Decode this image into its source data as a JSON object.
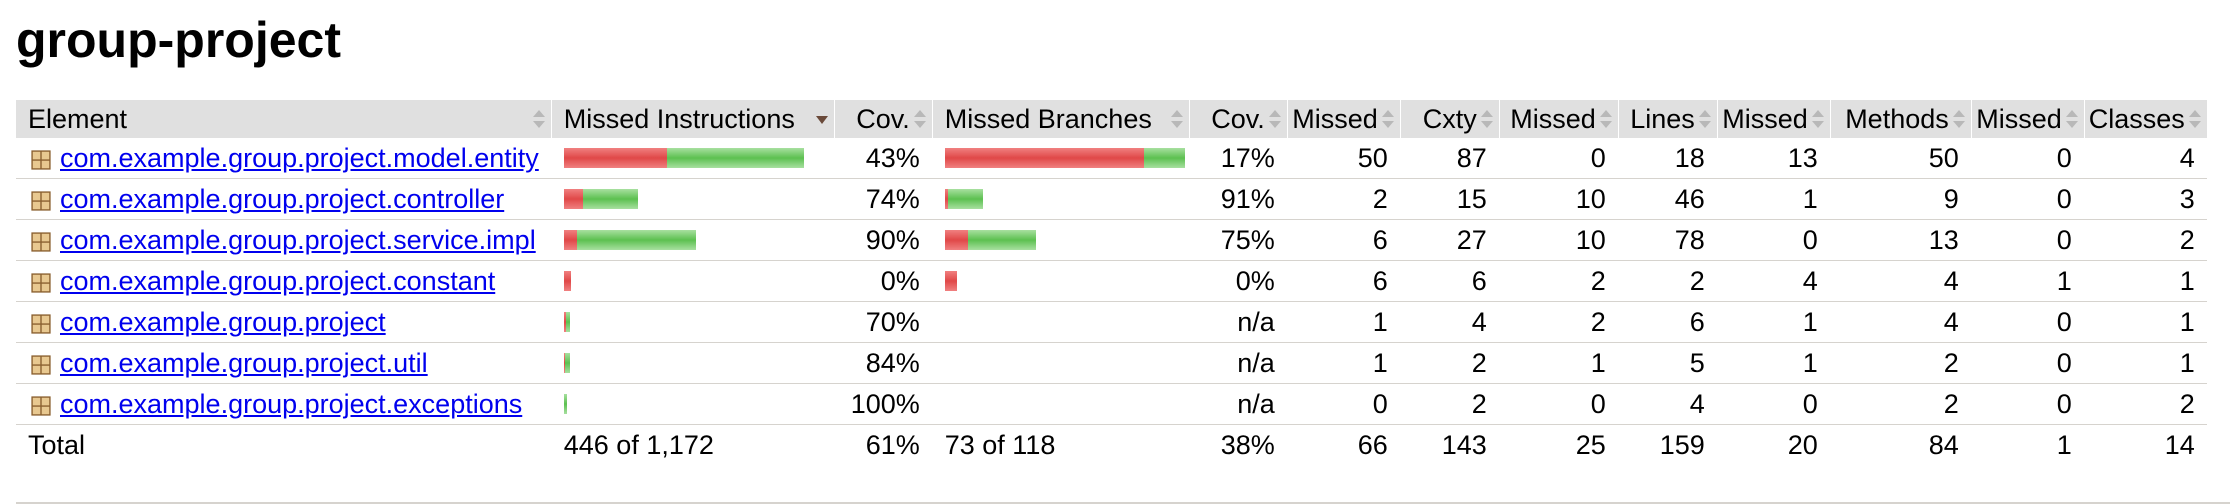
{
  "title": "group-project",
  "headers": [
    "Element",
    "Missed Instructions",
    "Cov.",
    "Missed Branches",
    "Cov.",
    "Missed",
    "Cxty",
    "Missed",
    "Lines",
    "Missed",
    "Methods",
    "Missed",
    "Classes"
  ],
  "sort_column": "Missed Instructions",
  "rows": [
    {
      "name": "com.example.group.project.model.entity",
      "instr_missed_ratio": 0.43,
      "instr_total_ratio": 1.0,
      "instr_cov": "43%",
      "branch_missed_ratio": 0.83,
      "branch_total_ratio": 1.0,
      "branch_cov": "17%",
      "cxty_missed": "50",
      "cxty": "87",
      "lines_missed": "0",
      "lines": "18",
      "methods_missed": "13",
      "methods": "50",
      "classes_missed": "0",
      "classes": "4"
    },
    {
      "name": "com.example.group.project.controller",
      "instr_missed_ratio": 0.26,
      "instr_total_ratio": 0.31,
      "instr_cov": "74%",
      "branch_missed_ratio": 0.09,
      "branch_total_ratio": 0.16,
      "branch_cov": "91%",
      "cxty_missed": "2",
      "cxty": "15",
      "lines_missed": "10",
      "lines": "46",
      "methods_missed": "1",
      "methods": "9",
      "classes_missed": "0",
      "classes": "3"
    },
    {
      "name": "com.example.group.project.service.impl",
      "instr_missed_ratio": 0.1,
      "instr_total_ratio": 0.55,
      "instr_cov": "90%",
      "branch_missed_ratio": 0.25,
      "branch_total_ratio": 0.38,
      "branch_cov": "75%",
      "cxty_missed": "6",
      "cxty": "27",
      "lines_missed": "10",
      "lines": "78",
      "methods_missed": "0",
      "methods": "13",
      "classes_missed": "0",
      "classes": "2"
    },
    {
      "name": "com.example.group.project.constant",
      "instr_missed_ratio": 1.0,
      "instr_total_ratio": 0.03,
      "instr_cov": "0%",
      "branch_missed_ratio": 1.0,
      "branch_total_ratio": 0.05,
      "branch_cov": "0%",
      "cxty_missed": "6",
      "cxty": "6",
      "lines_missed": "2",
      "lines": "2",
      "methods_missed": "4",
      "methods": "4",
      "classes_missed": "1",
      "classes": "1"
    },
    {
      "name": "com.example.group.project",
      "instr_missed_ratio": 0.3,
      "instr_total_ratio": 0.025,
      "instr_cov": "70%",
      "branch_missed_ratio": 0,
      "branch_total_ratio": 0,
      "branch_cov": "n/a",
      "cxty_missed": "1",
      "cxty": "4",
      "lines_missed": "2",
      "lines": "6",
      "methods_missed": "1",
      "methods": "4",
      "classes_missed": "0",
      "classes": "1"
    },
    {
      "name": "com.example.group.project.util",
      "instr_missed_ratio": 0.16,
      "instr_total_ratio": 0.025,
      "instr_cov": "84%",
      "branch_missed_ratio": 0,
      "branch_total_ratio": 0,
      "branch_cov": "n/a",
      "cxty_missed": "1",
      "cxty": "2",
      "lines_missed": "1",
      "lines": "5",
      "methods_missed": "1",
      "methods": "2",
      "classes_missed": "0",
      "classes": "1"
    },
    {
      "name": "com.example.group.project.exceptions",
      "instr_missed_ratio": 0,
      "instr_total_ratio": 0.012,
      "instr_cov": "100%",
      "branch_missed_ratio": 0,
      "branch_total_ratio": 0,
      "branch_cov": "n/a",
      "cxty_missed": "0",
      "cxty": "2",
      "lines_missed": "0",
      "lines": "4",
      "methods_missed": "0",
      "methods": "2",
      "classes_missed": "0",
      "classes": "2"
    }
  ],
  "total": {
    "label": "Total",
    "instr": "446 of 1,172",
    "instr_cov": "61%",
    "branch": "73 of 118",
    "branch_cov": "38%",
    "cxty_missed": "66",
    "cxty": "143",
    "lines_missed": "25",
    "lines": "159",
    "methods_missed": "20",
    "methods": "84",
    "classes_missed": "1",
    "classes": "14"
  },
  "colors": {
    "link": "#0000ee",
    "header_bg": "#e0e0e0",
    "bar_missed": "#e04848",
    "bar_covered": "#5cc050"
  },
  "icons": {
    "package": "package-icon",
    "sort": "sort-icon"
  }
}
